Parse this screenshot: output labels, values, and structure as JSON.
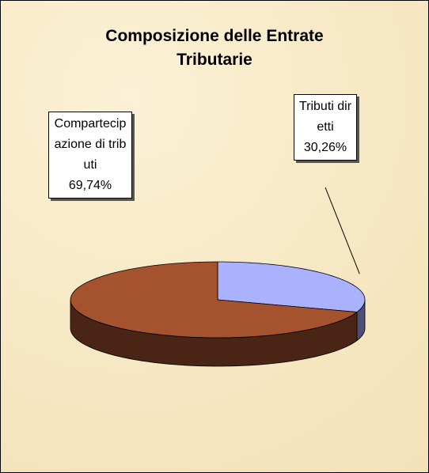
{
  "chart_data": {
    "type": "pie3d",
    "title": "Composizione delle Entrate Tributarie",
    "categories": [
      "Tributi diretti",
      "Compartecipazione di tributi"
    ],
    "values": [
      30.26,
      69.74
    ],
    "value_labels": [
      "30,26%",
      "69,74%"
    ],
    "colors": [
      "#aab2ff",
      "#a4532e"
    ]
  }
}
